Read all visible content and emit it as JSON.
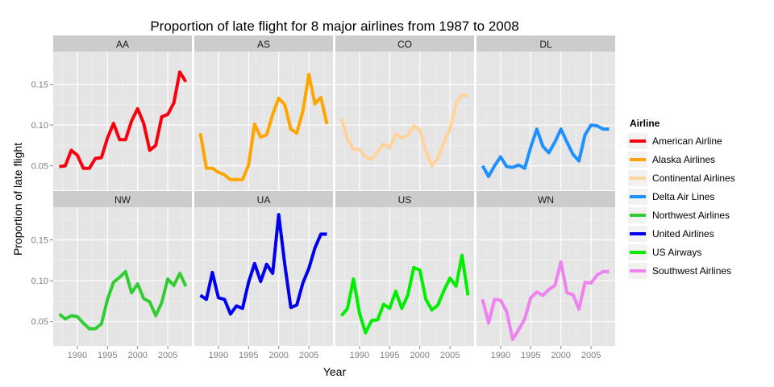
{
  "chart_data": {
    "type": "line",
    "title": "Proportion of late flight for 8 major airlines from 1987 to 2008",
    "xlabel": "Year",
    "ylabel": "Proportion of late flight",
    "xlim": [
      1986,
      2009
    ],
    "ylim": [
      0.02,
      0.19
    ],
    "x_ticks": [
      1990,
      1995,
      2000,
      2005
    ],
    "y_ticks": [
      0.05,
      0.1,
      0.15
    ],
    "y_tick_labels": [
      "0.05",
      "0.10",
      "0.15"
    ],
    "grid": true,
    "facet_layout": "2 rows x 4 columns",
    "legend_position": "right",
    "legend_title": "Airline",
    "x": [
      1987,
      1988,
      1989,
      1990,
      1991,
      1992,
      1993,
      1994,
      1995,
      1996,
      1997,
      1998,
      1999,
      2000,
      2001,
      2002,
      2003,
      2004,
      2005,
      2006,
      2007,
      2008
    ],
    "series": [
      {
        "code": "AA",
        "name": "American Airline",
        "color": "#F8000D",
        "values": [
          0.049,
          0.05,
          0.069,
          0.063,
          0.047,
          0.047,
          0.059,
          0.06,
          0.084,
          0.102,
          0.082,
          0.082,
          0.105,
          0.12,
          0.102,
          0.069,
          0.075,
          0.11,
          0.113,
          0.127,
          0.165,
          0.153
        ]
      },
      {
        "code": "AS",
        "name": "Alaska Airlines",
        "color": "#FFA500",
        "values": [
          0.09,
          0.047,
          0.047,
          0.042,
          0.039,
          0.033,
          0.033,
          0.033,
          0.051,
          0.101,
          0.085,
          0.088,
          0.113,
          0.133,
          0.125,
          0.095,
          0.09,
          0.117,
          0.162,
          0.126,
          0.134,
          0.101
        ]
      },
      {
        "code": "CO",
        "name": "Continental Airlines",
        "color": "#FFD39B",
        "values": [
          0.108,
          0.083,
          0.07,
          0.07,
          0.061,
          0.058,
          0.067,
          0.077,
          0.072,
          0.089,
          0.084,
          0.087,
          0.099,
          0.094,
          0.068,
          0.05,
          0.059,
          0.079,
          0.095,
          0.126,
          0.137,
          0.136
        ]
      },
      {
        "code": "DL",
        "name": "Delta Air Lines",
        "color": "#1E90FF",
        "values": [
          0.05,
          0.037,
          0.05,
          0.061,
          0.049,
          0.048,
          0.051,
          0.047,
          0.073,
          0.095,
          0.074,
          0.066,
          0.079,
          0.095,
          0.079,
          0.064,
          0.056,
          0.088,
          0.1,
          0.099,
          0.095,
          0.095
        ]
      },
      {
        "code": "NW",
        "name": "Northwest Airlines",
        "color": "#32CD32",
        "values": [
          0.059,
          0.053,
          0.057,
          0.056,
          0.048,
          0.041,
          0.041,
          0.047,
          0.077,
          0.098,
          0.104,
          0.111,
          0.085,
          0.096,
          0.078,
          0.074,
          0.057,
          0.073,
          0.102,
          0.094,
          0.109,
          0.093
        ]
      },
      {
        "code": "UA",
        "name": "United Airlines",
        "color": "#0000EE",
        "values": [
          0.082,
          0.077,
          0.11,
          0.079,
          0.077,
          0.059,
          0.069,
          0.066,
          0.098,
          0.121,
          0.099,
          0.12,
          0.109,
          0.181,
          0.12,
          0.067,
          0.07,
          0.097,
          0.115,
          0.14,
          0.157,
          0.157
        ]
      },
      {
        "code": "US",
        "name": "US Airways",
        "color": "#00EE00",
        "values": [
          0.057,
          0.066,
          0.102,
          0.06,
          0.036,
          0.051,
          0.052,
          0.071,
          0.066,
          0.087,
          0.066,
          0.082,
          0.116,
          0.113,
          0.077,
          0.064,
          0.07,
          0.088,
          0.103,
          0.093,
          0.131,
          0.082
        ]
      },
      {
        "code": "WN",
        "name": "Southwest Airlines",
        "color": "#EE82EE",
        "values": [
          0.077,
          0.048,
          0.077,
          0.076,
          0.062,
          0.028,
          0.04,
          0.053,
          0.079,
          0.086,
          0.082,
          0.089,
          0.094,
          0.123,
          0.085,
          0.083,
          0.065,
          0.098,
          0.097,
          0.107,
          0.111,
          0.111
        ]
      }
    ]
  }
}
